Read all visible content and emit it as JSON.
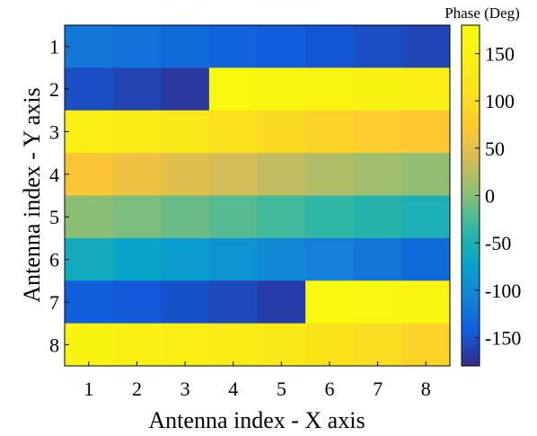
{
  "chart_data": {
    "type": "heatmap",
    "xlabel": "Antenna index - X axis",
    "ylabel": "Antenna index - Y axis",
    "x_categories": [
      "1",
      "2",
      "3",
      "4",
      "5",
      "6",
      "7",
      "8"
    ],
    "y_categories": [
      "1",
      "2",
      "3",
      "4",
      "5",
      "6",
      "7",
      "8"
    ],
    "values": [
      [
        -118,
        -124,
        -130,
        -136,
        -142,
        -148,
        -154,
        -160
      ],
      [
        -155,
        -162,
        -170,
        175,
        169,
        163,
        157,
        150
      ],
      [
        145,
        135,
        122,
        108,
        98,
        88,
        80,
        72
      ],
      [
        68,
        58,
        48,
        38,
        28,
        20,
        12,
        5
      ],
      [
        2,
        -5,
        -12,
        -20,
        -28,
        -36,
        -44,
        -52
      ],
      [
        -60,
        -70,
        -80,
        -90,
        -100,
        -110,
        -120,
        -130
      ],
      [
        -140,
        -146,
        -152,
        -158,
        -166,
        178,
        170,
        162
      ],
      [
        156,
        150,
        145,
        138,
        130,
        115,
        100,
        88
      ]
    ],
    "colorbar": {
      "title": "Phase (Deg)",
      "range": [
        -180,
        180
      ],
      "ticks": [
        150,
        100,
        50,
        0,
        -50,
        -100,
        -150
      ],
      "tick_labels": [
        "150",
        "100",
        "50",
        "0",
        "-50",
        "-100",
        "-150"
      ],
      "colormap": "parula"
    }
  }
}
